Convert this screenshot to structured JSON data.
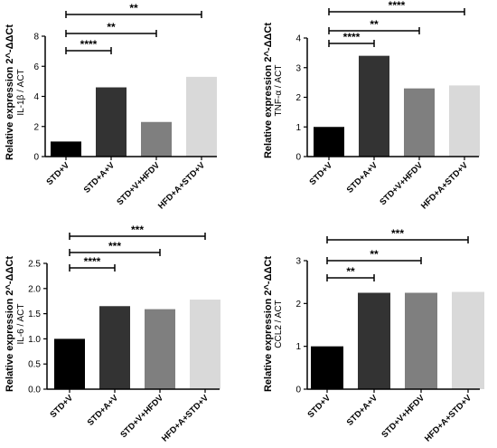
{
  "bar_colors": [
    "#000000",
    "#333333",
    "#7f7f7f",
    "#d9d9d9"
  ],
  "chart_data": [
    {
      "type": "bar",
      "categories": [
        "STD+V",
        "STD+A+V",
        "STD+V+HFDV",
        "HFD+A+STD+V"
      ],
      "values": [
        1.0,
        4.6,
        2.3,
        5.3
      ],
      "ylabel": "Relative expression 2^-ΔΔCt",
      "ylabel_sub": "IL-1β / ACT",
      "ylim": [
        0,
        8
      ],
      "yticks": [
        0,
        2,
        4,
        6,
        8
      ],
      "grid": false,
      "significance": [
        {
          "from": 0,
          "to": 1,
          "label": "****"
        },
        {
          "from": 0,
          "to": 2,
          "label": "**"
        },
        {
          "from": 0,
          "to": 3,
          "label": "**"
        }
      ]
    },
    {
      "type": "bar",
      "categories": [
        "STD+V",
        "STD+A+V",
        "STD+V+HFDV",
        "HFD+A+STD+V"
      ],
      "values": [
        1.0,
        3.4,
        2.3,
        2.4
      ],
      "ylabel": "Relative expression 2^-ΔΔCt",
      "ylabel_sub": "TNF-α / ACT",
      "ylim": [
        0,
        4
      ],
      "yticks": [
        0,
        1,
        2,
        3,
        4
      ],
      "grid": false,
      "significance": [
        {
          "from": 0,
          "to": 1,
          "label": "****"
        },
        {
          "from": 0,
          "to": 2,
          "label": "**"
        },
        {
          "from": 0,
          "to": 3,
          "label": "****"
        }
      ]
    },
    {
      "type": "bar",
      "categories": [
        "STD+V",
        "STD+A+V",
        "STD+V+HFDV",
        "HFD+A+STD+V"
      ],
      "values": [
        1.0,
        1.65,
        1.59,
        1.78
      ],
      "ylabel": "Relative expression 2^-ΔΔCt",
      "ylabel_sub": "IL-6 / ACT",
      "ylim": [
        0,
        2.5
      ],
      "yticks": [
        0,
        0.5,
        1.0,
        1.5,
        2.0,
        2.5
      ],
      "ytick_labels": [
        "0.0",
        "0.5",
        "1.0",
        "1.5",
        "2.0",
        "2.5"
      ],
      "grid": false,
      "significance": [
        {
          "from": 0,
          "to": 1,
          "label": "****"
        },
        {
          "from": 0,
          "to": 2,
          "label": "***"
        },
        {
          "from": 0,
          "to": 3,
          "label": "***"
        }
      ]
    },
    {
      "type": "bar",
      "categories": [
        "STD+V",
        "STD+A+V",
        "STD+V+HFDV",
        "HFD+A+STD+V"
      ],
      "values": [
        1.0,
        2.25,
        2.25,
        2.27
      ],
      "ylabel": "Relative expression 2^-ΔΔCt",
      "ylabel_sub": "CCL2 / ACT",
      "ylim": [
        0,
        3
      ],
      "yticks": [
        0,
        1,
        2,
        3
      ],
      "grid": false,
      "significance": [
        {
          "from": 0,
          "to": 1,
          "label": "**"
        },
        {
          "from": 0,
          "to": 2,
          "label": "**"
        },
        {
          "from": 0,
          "to": 3,
          "label": "***"
        }
      ]
    }
  ]
}
